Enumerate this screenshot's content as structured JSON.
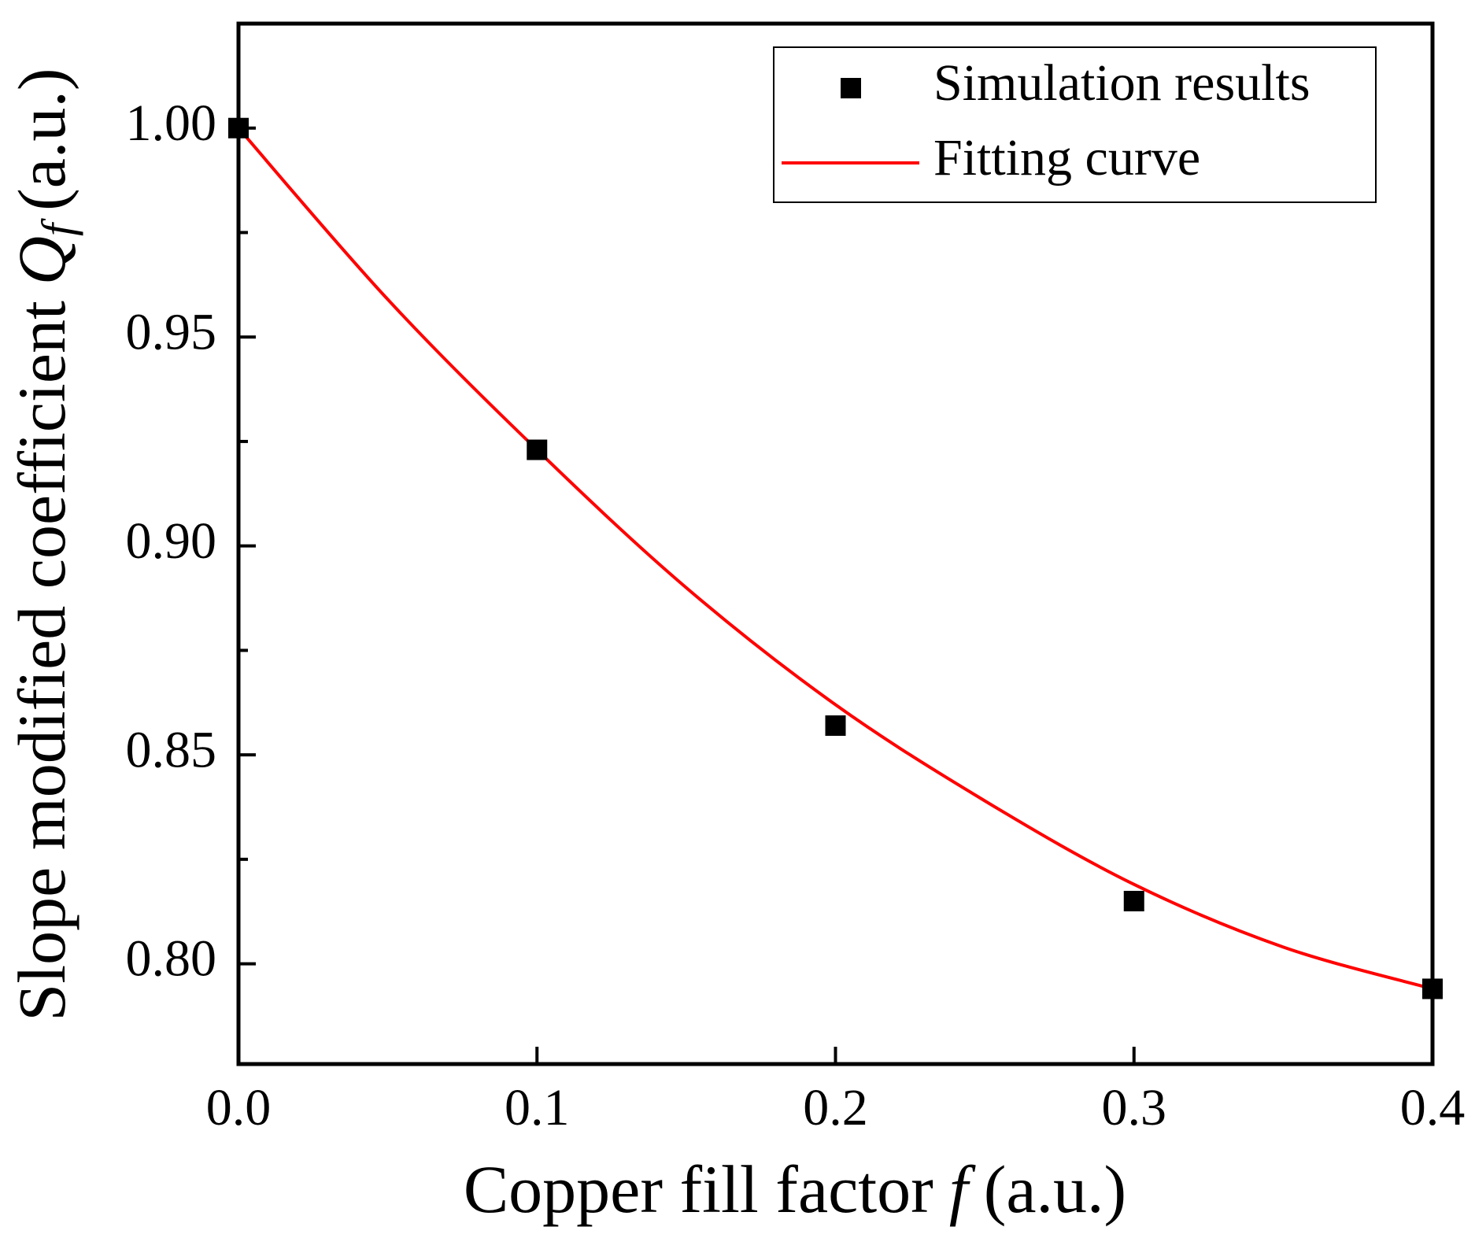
{
  "chart_data": {
    "type": "scatter",
    "xlabel": {
      "text": "Copper fill factor",
      "symbol": "f",
      "unit": "(a.u.)"
    },
    "ylabel": {
      "text": "Slope modified coefficient",
      "symbol": "Q",
      "subscript": "f",
      "unit": "(a.u.)"
    },
    "xlim": [
      0,
      0.4
    ],
    "xticks": [
      {
        "value": 0,
        "label": "0.0"
      },
      0.1,
      0.2,
      0.3,
      0.4
    ],
    "ylim": [
      0.776,
      1.025
    ],
    "yticks": [
      {
        "value": 0.8,
        "label": "0.80"
      },
      {
        "value": 0.85,
        "label": "0.85"
      },
      {
        "value": 0.9,
        "label": "0.90"
      },
      {
        "value": 0.95,
        "label": "0.95"
      },
      {
        "value": 1.0,
        "label": "1.00"
      }
    ],
    "yminorticks": [
      0.825,
      0.875,
      0.925,
      0.975
    ],
    "legend": "upper right",
    "series": [
      {
        "name": "Simulation results",
        "type": "scatter",
        "color": "#000000",
        "x": [
          0,
          0.1,
          0.2,
          0.3,
          0.4
        ],
        "values": [
          1.0,
          0.923,
          0.857,
          0.815,
          0.794
        ]
      },
      {
        "name": "Fitting curve",
        "type": "line",
        "color": "#ff0000",
        "x": [
          0,
          0.05,
          0.1,
          0.15,
          0.2,
          0.25,
          0.3,
          0.35,
          0.4
        ],
        "values": [
          1.0,
          0.959,
          0.923,
          0.89,
          0.862,
          0.839,
          0.819,
          0.804,
          0.794
        ]
      }
    ]
  }
}
